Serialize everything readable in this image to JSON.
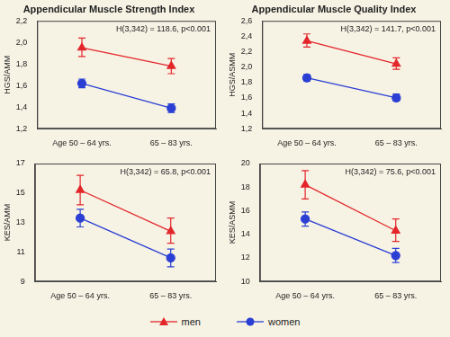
{
  "chart_data": [
    {
      "type": "line",
      "title": "Appendicular Muscle Strength Index",
      "ylabel": "HGS/AMM",
      "annotation": "H(3,342) = 118.6, p<0.001",
      "categories": [
        "Age 50 – 64 yrs.",
        "65 – 83 yrs."
      ],
      "series": [
        {
          "name": "men",
          "color": "#e3262b",
          "marker": "triangle",
          "line_style": "solid",
          "values": [
            1.95,
            1.78
          ],
          "ci": [
            [
              1.87,
              2.04
            ],
            [
              1.71,
              1.85
            ]
          ]
        },
        {
          "name": "women",
          "color": "#2b3fd4",
          "marker": "circle",
          "line_style": "solid",
          "values": [
            1.62,
            1.39
          ],
          "ci": [
            [
              1.58,
              1.66
            ],
            [
              1.35,
              1.43
            ]
          ]
        }
      ],
      "ylim": [
        1.2,
        2.2
      ],
      "yticks": [
        {
          "value": 1.2,
          "label": "1,2"
        },
        {
          "value": 1.4,
          "label": "1,4"
        },
        {
          "value": 1.6,
          "label": "1,6"
        },
        {
          "value": 1.8,
          "label": "1,8"
        },
        {
          "value": 2.0,
          "label": "2,0"
        },
        {
          "value": 2.2,
          "label": "2,2"
        }
      ],
      "grid": false,
      "legend": "bottom"
    },
    {
      "type": "line",
      "title": "Appendicular Muscle Quality Index",
      "ylabel": "HGS/ASMM",
      "annotation": "H(3,342) = 141.7, p<0.001",
      "categories": [
        "Age 50 – 64 yrs.",
        "65 – 83 yrs."
      ],
      "series": [
        {
          "name": "men",
          "color": "#e3262b",
          "marker": "triangle",
          "line_style": "solid",
          "values": [
            2.34,
            2.04
          ],
          "ci": [
            [
              2.26,
              2.43
            ],
            [
              1.97,
              2.12
            ]
          ]
        },
        {
          "name": "women",
          "color": "#2b3fd4",
          "marker": "circle",
          "line_style": "solid",
          "values": [
            1.86,
            1.6
          ],
          "ci": [
            [
              1.82,
              1.9
            ],
            [
              1.56,
              1.65
            ]
          ]
        }
      ],
      "ylim": [
        1.2,
        2.6
      ],
      "yticks": [
        {
          "value": 1.2,
          "label": "1,2"
        },
        {
          "value": 1.4,
          "label": "1,4"
        },
        {
          "value": 1.6,
          "label": "1,6"
        },
        {
          "value": 1.8,
          "label": "1,8"
        },
        {
          "value": 2.0,
          "label": "2,0"
        },
        {
          "value": 2.2,
          "label": "2,2"
        },
        {
          "value": 2.4,
          "label": "2,4"
        },
        {
          "value": 2.6,
          "label": "2,6"
        }
      ],
      "grid": false,
      "legend": "bottom"
    },
    {
      "type": "line",
      "title": "",
      "ylabel": "KES/AMM",
      "annotation": "H(3,342) = 65.8, p<0.001",
      "categories": [
        "Age 50 – 64 yrs.",
        "65 – 83 yrs."
      ],
      "series": [
        {
          "name": "men",
          "color": "#e3262b",
          "marker": "triangle",
          "line_style": "solid",
          "values": [
            15.2,
            12.4
          ],
          "ci": [
            [
              14.2,
              16.2
            ],
            [
              11.6,
              13.3
            ]
          ]
        },
        {
          "name": "women",
          "color": "#2b3fd4",
          "marker": "circle",
          "line_style": "solid",
          "values": [
            13.3,
            10.6
          ],
          "ci": [
            [
              12.7,
              13.9
            ],
            [
              10.0,
              11.2
            ]
          ]
        }
      ],
      "ylim": [
        9,
        17
      ],
      "yticks": [
        9,
        11,
        13,
        15,
        17
      ],
      "grid": false,
      "legend": "bottom"
    },
    {
      "type": "line",
      "title": "",
      "ylabel": "KES/ASMM",
      "annotation": "H(3,342) = 75.6, p<0.001",
      "categories": [
        "Age 50 – 64 yrs.",
        "65 – 83 yrs."
      ],
      "series": [
        {
          "name": "men",
          "color": "#e3262b",
          "marker": "triangle",
          "line_style": "solid",
          "values": [
            18.2,
            14.3
          ],
          "ci": [
            [
              17.0,
              19.4
            ],
            [
              13.4,
              15.3
            ]
          ]
        },
        {
          "name": "women",
          "color": "#2b3fd4",
          "marker": "circle",
          "line_style": "solid",
          "values": [
            15.3,
            12.2
          ],
          "ci": [
            [
              14.7,
              15.9
            ],
            [
              11.6,
              12.8
            ]
          ]
        }
      ],
      "ylim": [
        10,
        20
      ],
      "yticks": [
        10,
        12,
        14,
        16,
        18,
        20
      ],
      "grid": false,
      "legend": "bottom"
    }
  ]
}
